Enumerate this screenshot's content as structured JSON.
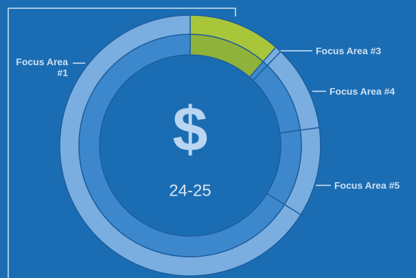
{
  "chart_data": {
    "type": "donut",
    "categories": [
      null,
      "Focus Area #3",
      "Focus Area #4",
      "Focus Area #5",
      "Focus Area #1"
    ],
    "values": [
      11.4,
      0.8,
      10.6,
      11.1,
      66.1
    ],
    "colors": [
      "#a9c63b",
      "#7aaee0",
      "#7aaee0",
      "#7aaee0",
      "#7aaee0"
    ],
    "inner_colors": [
      "#8fb23a",
      "#3d88cd",
      "#3d88cd",
      "#3d88cd",
      "#3d88cd"
    ],
    "center_symbol": "$",
    "center_label": "24-25"
  }
}
